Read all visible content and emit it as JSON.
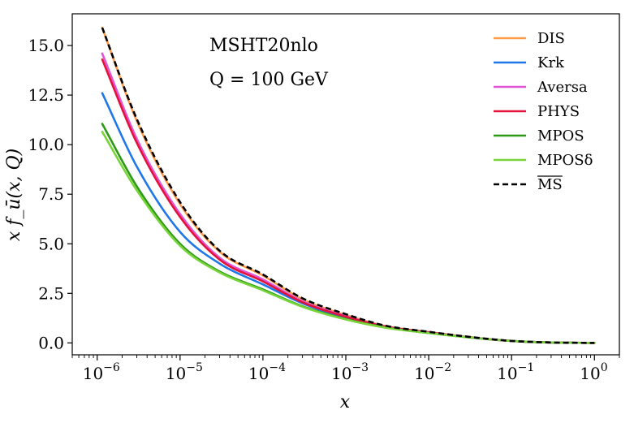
{
  "chart_data": {
    "type": "line",
    "xscale": "log",
    "xlim": [
      5e-07,
      2.0
    ],
    "ylim": [
      -0.6,
      16.6
    ],
    "xlabel": "x",
    "ylabel": "x f_ū(x, Q)",
    "yticks": [
      0.0,
      2.5,
      5.0,
      7.5,
      10.0,
      12.5,
      15.0
    ],
    "ytick_labels": [
      "0.0",
      "2.5",
      "5.0",
      "7.5",
      "10.0",
      "12.5",
      "15.0"
    ],
    "xticks": [
      {
        "value": 1e-06,
        "base": "10",
        "exp": "−6"
      },
      {
        "value": 1e-05,
        "base": "10",
        "exp": "−5"
      },
      {
        "value": 0.0001,
        "base": "10",
        "exp": "−4"
      },
      {
        "value": 0.001,
        "base": "10",
        "exp": "−3"
      },
      {
        "value": 0.01,
        "base": "10",
        "exp": "−2"
      },
      {
        "value": 0.1,
        "base": "10",
        "exp": "−1"
      },
      {
        "value": 1,
        "base": "10",
        "exp": "0"
      }
    ],
    "annotations": [
      "MSHT20nlo",
      "Q = 100 GeV"
    ],
    "legend_position": "top-right",
    "x": [
      1.15e-06,
      3e-06,
      1e-05,
      3e-05,
      0.0001,
      0.0003,
      0.001,
      0.003,
      0.01,
      0.03,
      0.1,
      0.3,
      1.0
    ],
    "series": [
      {
        "name": "DIS",
        "color": "#ff9c4a",
        "dashed": false,
        "values": [
          15.9,
          11.2,
          7.0,
          4.6,
          3.4,
          2.2,
          1.4,
          0.85,
          0.55,
          0.3,
          0.1,
          0.02,
          0.0
        ]
      },
      {
        "name": "Krk",
        "color": "#1f77e8",
        "dashed": false,
        "values": [
          12.6,
          8.9,
          5.6,
          4.0,
          2.95,
          2.0,
          1.25,
          0.8,
          0.5,
          0.28,
          0.1,
          0.02,
          0.0
        ]
      },
      {
        "name": "Aversa",
        "color": "#e055d6",
        "dashed": false,
        "values": [
          14.6,
          10.3,
          6.5,
          4.3,
          3.2,
          2.1,
          1.35,
          0.83,
          0.54,
          0.29,
          0.1,
          0.02,
          0.0
        ]
      },
      {
        "name": "PHYS",
        "color": "#e3123a",
        "dashed": false,
        "values": [
          14.3,
          10.1,
          6.35,
          4.2,
          3.1,
          2.05,
          1.32,
          0.82,
          0.53,
          0.29,
          0.1,
          0.02,
          0.0
        ]
      },
      {
        "name": "MPOS",
        "color": "#2d9a16",
        "dashed": false,
        "values": [
          11.05,
          7.9,
          5.0,
          3.6,
          2.7,
          1.85,
          1.2,
          0.78,
          0.5,
          0.28,
          0.1,
          0.02,
          0.0
        ]
      },
      {
        "name": "MPOSδ",
        "color": "#78d43a",
        "dashed": false,
        "values": [
          10.65,
          7.7,
          4.9,
          3.55,
          2.65,
          1.82,
          1.18,
          0.77,
          0.5,
          0.28,
          0.1,
          0.02,
          0.0
        ]
      },
      {
        "name": "MS",
        "color": "#000000",
        "dashed": true,
        "overline": true,
        "values": [
          15.9,
          11.3,
          7.1,
          4.65,
          3.45,
          2.25,
          1.45,
          0.87,
          0.56,
          0.31,
          0.1,
          0.02,
          0.0
        ]
      }
    ]
  }
}
